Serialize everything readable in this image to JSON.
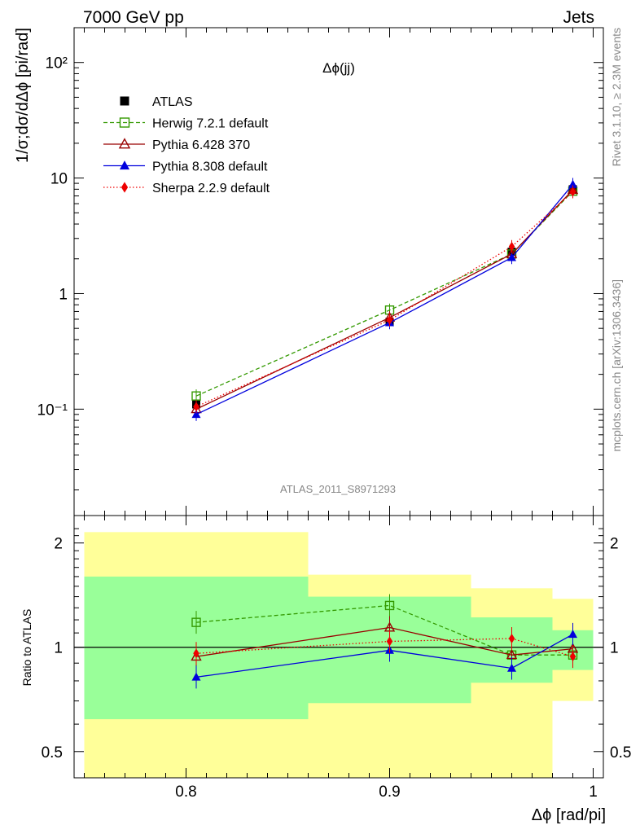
{
  "header": {
    "left": "7000 GeV pp",
    "right": "Jets"
  },
  "side_text": {
    "rivet": "Rivet 3.1.10, ≥ 2.3M events",
    "mcplots": "mcplots.cern.ch [arXiv:1306.3436]"
  },
  "chart_data": [
    {
      "type": "line",
      "panel": "main",
      "title": "Δϕ(jj)",
      "ylabel": "1/σ;dσ/dΔϕ [pi/rad]",
      "yscale": "log",
      "ylim": [
        0.012,
        200
      ],
      "xlim": [
        0.745,
        1.005
      ],
      "analysis_label": "ATLAS_2011_S8971293",
      "legend_position": "top-left",
      "y_tick_labels": [
        "10⁻¹",
        "1",
        "10",
        "10²"
      ],
      "series": [
        {
          "name": "ATLAS",
          "color": "#000000",
          "marker": "square-filled",
          "line": "none",
          "x": [
            0.805,
            0.9,
            0.96,
            0.99
          ],
          "y": [
            0.11,
            0.57,
            2.3,
            8.0
          ]
        },
        {
          "name": "Herwig 7.2.1 default",
          "color": "#339900",
          "marker": "square-open",
          "line": "dashed",
          "x": [
            0.805,
            0.9,
            0.96,
            0.99
          ],
          "y": [
            0.13,
            0.72,
            2.2,
            7.7
          ]
        },
        {
          "name": "Pythia 6.428 370",
          "color": "#990000",
          "marker": "triangle-open",
          "line": "solid",
          "x": [
            0.805,
            0.9,
            0.96,
            0.99
          ],
          "y": [
            0.1,
            0.62,
            2.2,
            7.9
          ]
        },
        {
          "name": "Pythia 8.308 default",
          "color": "#0000dd",
          "marker": "triangle-filled",
          "line": "solid",
          "x": [
            0.805,
            0.9,
            0.96,
            0.99
          ],
          "y": [
            0.09,
            0.56,
            2.05,
            8.8
          ]
        },
        {
          "name": "Sherpa 2.2.9 default",
          "color": "#ee0000",
          "marker": "diamond-filled",
          "line": "dotted",
          "x": [
            0.805,
            0.9,
            0.96,
            0.99
          ],
          "y": [
            0.105,
            0.59,
            2.55,
            7.6
          ]
        }
      ]
    },
    {
      "type": "line",
      "panel": "ratio",
      "ylabel": "Ratio to ATLAS",
      "xlabel": "Δϕ [rad/pi]",
      "yscale": "log",
      "ylim": [
        0.42,
        2.4
      ],
      "xlim": [
        0.745,
        1.005
      ],
      "x_tick_labels": [
        "0.8",
        "0.9",
        "1"
      ],
      "y_tick_labels": [
        "0.5",
        "1",
        "2"
      ],
      "bands": [
        {
          "x": [
            0.75,
            0.86
          ],
          "stat": [
            0.62,
            1.6
          ],
          "total": [
            0.42,
            2.15
          ]
        },
        {
          "x": [
            0.86,
            0.94
          ],
          "stat": [
            0.69,
            1.4
          ],
          "total": [
            0.42,
            1.62
          ]
        },
        {
          "x": [
            0.94,
            0.98
          ],
          "stat": [
            0.79,
            1.22
          ],
          "total": [
            0.42,
            1.48
          ]
        },
        {
          "x": [
            0.98,
            1.0
          ],
          "stat": [
            0.86,
            1.12
          ],
          "total": [
            0.7,
            1.38
          ]
        }
      ],
      "series": [
        {
          "name": "Herwig 7.2.1 default",
          "color": "#339900",
          "marker": "square-open",
          "line": "dashed",
          "x": [
            0.805,
            0.9,
            0.96,
            0.99
          ],
          "y": [
            1.18,
            1.32,
            0.95,
            0.95
          ]
        },
        {
          "name": "Pythia 6.428 370",
          "color": "#990000",
          "marker": "triangle-open",
          "line": "solid",
          "x": [
            0.805,
            0.9,
            0.96,
            0.99
          ],
          "y": [
            0.94,
            1.14,
            0.95,
            0.99
          ]
        },
        {
          "name": "Pythia 8.308 default",
          "color": "#0000dd",
          "marker": "triangle-filled",
          "line": "solid",
          "x": [
            0.805,
            0.9,
            0.96,
            0.99
          ],
          "y": [
            0.82,
            0.98,
            0.87,
            1.09
          ]
        },
        {
          "name": "Sherpa 2.2.9 default",
          "color": "#ee0000",
          "marker": "diamond-filled",
          "line": "dotted",
          "x": [
            0.805,
            0.9,
            0.96,
            0.99
          ],
          "y": [
            0.96,
            1.04,
            1.06,
            0.94
          ]
        }
      ]
    }
  ],
  "colors": {
    "band_inner": "#99ff99",
    "band_outer": "#ffff99"
  }
}
